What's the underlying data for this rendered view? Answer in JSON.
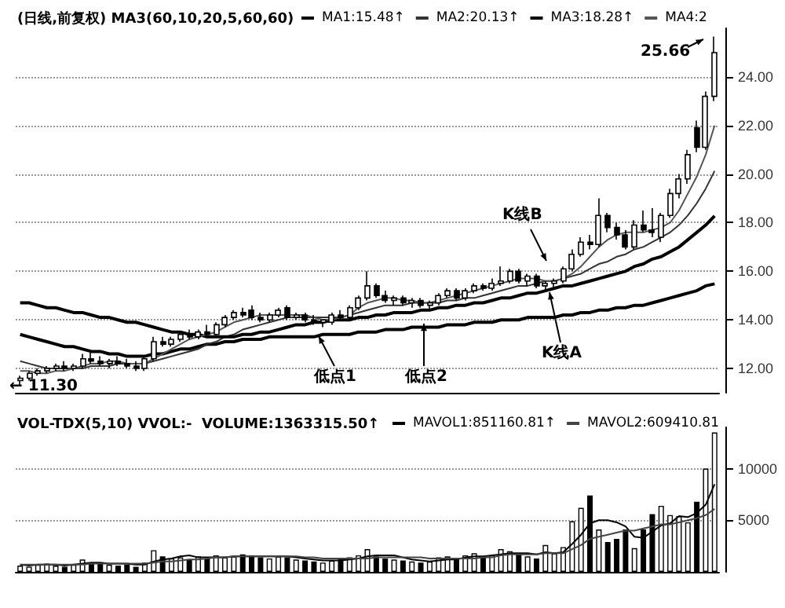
{
  "chart_data": [
    {
      "type": "candlestick",
      "title": "(日线,前复权) MA3(60,10,20,5,60,60)",
      "categories": [
        null,
        null,
        null,
        null,
        null,
        null,
        null,
        null,
        null,
        null,
        null,
        null,
        null,
        null,
        null,
        null,
        null,
        null,
        null,
        null,
        null,
        null,
        null,
        null,
        null,
        null,
        null,
        null,
        null,
        null,
        null,
        null,
        null,
        null,
        null,
        null,
        null,
        null,
        null,
        null,
        null,
        null,
        null,
        null,
        null,
        null,
        null,
        null,
        null,
        null,
        null,
        null,
        null,
        null,
        null,
        null,
        null,
        null,
        null,
        null,
        null,
        null,
        null,
        null,
        null,
        null,
        null,
        null,
        null,
        null,
        null,
        null,
        null,
        null,
        null,
        null,
        null,
        null,
        null
      ],
      "series": [
        {
          "type": "line",
          "name": "MA1:15.48↑",
          "color": "#000000",
          "values": [
            13.4,
            13.3,
            13.2,
            13.1,
            13.0,
            12.9,
            12.9,
            12.8,
            12.7,
            12.7,
            12.6,
            12.6,
            12.5,
            12.5,
            12.5,
            12.6,
            12.6,
            12.7,
            12.8,
            12.8,
            12.9,
            13.0,
            13.0,
            13.1,
            13.1,
            13.2,
            13.2,
            13.2,
            13.3,
            13.3,
            13.3,
            13.3,
            13.3,
            13.3,
            13.4,
            13.4,
            13.4,
            13.4,
            13.5,
            13.5,
            13.5,
            13.6,
            13.6,
            13.6,
            13.7,
            13.7,
            13.7,
            13.7,
            13.8,
            13.8,
            13.8,
            13.9,
            13.9,
            13.9,
            14.0,
            14.0,
            14.0,
            14.1,
            14.1,
            14.1,
            14.1,
            14.2,
            14.2,
            14.3,
            14.3,
            14.4,
            14.4,
            14.5,
            14.5,
            14.6,
            14.6,
            14.7,
            14.8,
            14.9,
            15.0,
            15.1,
            15.2,
            15.4,
            15.48
          ]
        },
        {
          "type": "line",
          "name": "MA2:20.13↑",
          "color": "#333333",
          "values": [
            12.3,
            12.2,
            12.1,
            12.0,
            12.0,
            12.0,
            12.0,
            12.0,
            12.1,
            12.1,
            12.1,
            12.2,
            12.2,
            12.2,
            12.2,
            12.3,
            12.4,
            12.5,
            12.6,
            12.7,
            12.8,
            13.0,
            13.1,
            13.3,
            13.4,
            13.6,
            13.7,
            13.8,
            13.9,
            14.0,
            14.1,
            14.1,
            14.1,
            14.1,
            14.1,
            14.1,
            14.1,
            14.2,
            14.3,
            14.4,
            14.5,
            14.6,
            14.6,
            14.6,
            14.7,
            14.7,
            14.7,
            14.7,
            14.8,
            14.8,
            14.9,
            14.9,
            15.0,
            15.1,
            15.2,
            15.3,
            15.4,
            15.4,
            15.5,
            15.6,
            15.6,
            15.7,
            15.8,
            15.9,
            16.1,
            16.3,
            16.4,
            16.6,
            16.7,
            16.9,
            17.0,
            17.2,
            17.4,
            17.6,
            17.9,
            18.3,
            18.8,
            19.4,
            20.13
          ]
        },
        {
          "type": "line",
          "name": "MA3:18.28↑",
          "color": "#000000",
          "values": [
            14.7,
            14.7,
            14.6,
            14.5,
            14.5,
            14.4,
            14.3,
            14.3,
            14.2,
            14.1,
            14.1,
            14.0,
            13.9,
            13.9,
            13.8,
            13.7,
            13.6,
            13.5,
            13.5,
            13.4,
            13.4,
            13.3,
            13.3,
            13.3,
            13.3,
            13.4,
            13.4,
            13.5,
            13.5,
            13.6,
            13.7,
            13.8,
            13.8,
            13.9,
            13.9,
            14.0,
            14.0,
            14.0,
            14.1,
            14.1,
            14.2,
            14.2,
            14.3,
            14.3,
            14.3,
            14.4,
            14.4,
            14.5,
            14.5,
            14.6,
            14.6,
            14.7,
            14.7,
            14.8,
            14.9,
            14.9,
            15.0,
            15.1,
            15.1,
            15.2,
            15.3,
            15.4,
            15.4,
            15.5,
            15.6,
            15.7,
            15.8,
            15.9,
            16.0,
            16.2,
            16.3,
            16.5,
            16.6,
            16.8,
            17.0,
            17.3,
            17.6,
            17.9,
            18.28
          ]
        },
        {
          "type": "line",
          "name": "MA4:2",
          "color": "#555555",
          "values": [
            11.9,
            11.9,
            11.8,
            11.8,
            11.9,
            11.9,
            12.0,
            12.1,
            12.2,
            12.2,
            12.3,
            12.3,
            12.2,
            12.2,
            12.2,
            12.4,
            12.6,
            12.8,
            13.0,
            13.2,
            13.3,
            13.4,
            13.5,
            13.7,
            13.9,
            14.0,
            14.1,
            14.2,
            14.2,
            14.2,
            14.2,
            14.2,
            14.2,
            14.1,
            14.0,
            14.0,
            14.1,
            14.2,
            14.5,
            14.7,
            14.8,
            14.9,
            14.9,
            14.8,
            14.8,
            14.7,
            14.7,
            14.8,
            14.9,
            15.0,
            15.1,
            15.2,
            15.3,
            15.4,
            15.5,
            15.6,
            15.7,
            15.7,
            15.7,
            15.6,
            15.6,
            15.7,
            15.9,
            16.2,
            16.6,
            17.0,
            17.3,
            17.5,
            17.6,
            17.6,
            17.6,
            17.7,
            17.8,
            18.0,
            18.5,
            19.2,
            19.9,
            20.8,
            22.0
          ]
        },
        {
          "type": "candlestick",
          "color": "#000000",
          "ohlc": [
            [
              11.5,
              11.7,
              11.3,
              11.6
            ],
            [
              11.6,
              11.9,
              11.5,
              11.8
            ],
            [
              11.8,
              12.0,
              11.7,
              11.9
            ],
            [
              11.9,
              12.1,
              11.8,
              12.0
            ],
            [
              12.0,
              12.2,
              11.9,
              12.1
            ],
            [
              12.1,
              12.3,
              11.9,
              12.0
            ],
            [
              12.0,
              12.2,
              11.9,
              12.1
            ],
            [
              12.1,
              12.6,
              12.0,
              12.4
            ],
            [
              12.4,
              12.7,
              12.2,
              12.3
            ],
            [
              12.3,
              12.5,
              12.1,
              12.2
            ],
            [
              12.2,
              12.4,
              12.0,
              12.3
            ],
            [
              12.3,
              12.5,
              12.1,
              12.2
            ],
            [
              12.2,
              12.4,
              12.0,
              12.1
            ],
            [
              12.1,
              12.3,
              11.9,
              12.0
            ],
            [
              12.0,
              12.5,
              11.9,
              12.4
            ],
            [
              12.4,
              13.3,
              12.3,
              13.1
            ],
            [
              13.1,
              13.3,
              12.9,
              13.0
            ],
            [
              13.0,
              13.3,
              12.9,
              13.2
            ],
            [
              13.2,
              13.5,
              13.1,
              13.4
            ],
            [
              13.4,
              13.6,
              13.2,
              13.3
            ],
            [
              13.3,
              13.6,
              13.2,
              13.5
            ],
            [
              13.5,
              13.8,
              13.3,
              13.4
            ],
            [
              13.4,
              13.9,
              13.3,
              13.8
            ],
            [
              13.8,
              14.2,
              13.7,
              14.1
            ],
            [
              14.1,
              14.4,
              14.0,
              14.3
            ],
            [
              14.3,
              14.5,
              14.1,
              14.2
            ],
            [
              14.4,
              14.6,
              14.0,
              14.1
            ],
            [
              14.1,
              14.3,
              13.9,
              14.0
            ],
            [
              14.0,
              14.3,
              13.9,
              14.2
            ],
            [
              14.2,
              14.5,
              14.1,
              14.4
            ],
            [
              14.5,
              14.6,
              14.0,
              14.1
            ],
            [
              14.1,
              14.3,
              14.0,
              14.2
            ],
            [
              14.2,
              14.3,
              13.9,
              14.0
            ],
            [
              14.0,
              14.2,
              13.8,
              13.9
            ],
            [
              13.9,
              14.0,
              13.7,
              14.0
            ],
            [
              13.9,
              14.3,
              13.8,
              14.2
            ],
            [
              14.2,
              14.4,
              14.0,
              14.1
            ],
            [
              14.1,
              14.6,
              14.0,
              14.5
            ],
            [
              14.5,
              15.0,
              14.4,
              14.9
            ],
            [
              14.9,
              16.0,
              14.8,
              15.4
            ],
            [
              15.4,
              15.5,
              14.9,
              15.0
            ],
            [
              15.0,
              15.2,
              14.7,
              14.8
            ],
            [
              14.8,
              15.0,
              14.6,
              14.9
            ],
            [
              14.9,
              15.0,
              14.6,
              14.7
            ],
            [
              14.7,
              14.9,
              14.5,
              14.8
            ],
            [
              14.8,
              14.9,
              14.5,
              14.6
            ],
            [
              14.6,
              14.8,
              14.4,
              14.7
            ],
            [
              14.7,
              15.1,
              14.6,
              15.0
            ],
            [
              15.0,
              15.3,
              14.9,
              15.2
            ],
            [
              15.2,
              15.3,
              14.8,
              14.9
            ],
            [
              14.9,
              15.3,
              14.8,
              15.2
            ],
            [
              15.2,
              15.5,
              15.1,
              15.4
            ],
            [
              15.4,
              15.5,
              15.2,
              15.3
            ],
            [
              15.3,
              15.7,
              15.2,
              15.5
            ],
            [
              15.5,
              16.2,
              15.4,
              15.6
            ],
            [
              15.6,
              16.1,
              15.5,
              16.0
            ],
            [
              16.0,
              16.1,
              15.5,
              15.6
            ],
            [
              15.6,
              15.9,
              15.4,
              15.8
            ],
            [
              15.8,
              15.9,
              15.3,
              15.4
            ],
            [
              15.4,
              15.6,
              15.2,
              15.5
            ],
            [
              15.5,
              15.7,
              15.3,
              15.6
            ],
            [
              15.6,
              16.2,
              15.5,
              16.1
            ],
            [
              16.1,
              16.9,
              16.0,
              16.7
            ],
            [
              16.7,
              17.4,
              16.6,
              17.2
            ],
            [
              17.2,
              17.5,
              16.9,
              17.1
            ],
            [
              17.1,
              19.0,
              17.0,
              18.3
            ],
            [
              18.3,
              18.4,
              17.6,
              17.8
            ],
            [
              17.8,
              18.0,
              17.3,
              17.5
            ],
            [
              17.5,
              17.7,
              16.9,
              17.0
            ],
            [
              17.0,
              18.1,
              16.9,
              17.9
            ],
            [
              17.9,
              18.5,
              17.6,
              17.7
            ],
            [
              17.7,
              18.6,
              17.4,
              17.6
            ],
            [
              17.4,
              18.4,
              17.2,
              18.3
            ],
            [
              18.3,
              19.4,
              18.2,
              19.2
            ],
            [
              19.2,
              20.0,
              19.0,
              19.8
            ],
            [
              19.8,
              21.0,
              19.6,
              20.8
            ],
            [
              21.9,
              22.2,
              20.9,
              21.1
            ],
            [
              21.1,
              23.4,
              21.0,
              23.2
            ],
            [
              23.2,
              25.66,
              23.0,
              25.0
            ]
          ]
        }
      ],
      "ylim": [
        11,
        26
      ],
      "yticks": [
        {
          "value": 12,
          "label": "12.00"
        },
        {
          "value": 14,
          "label": "14.00"
        },
        {
          "value": 16,
          "label": "16.00"
        },
        {
          "value": 18,
          "label": "18.00"
        },
        {
          "value": 20,
          "label": "20.00"
        },
        {
          "value": 22,
          "label": "22.00"
        },
        {
          "value": 24,
          "label": "24.00"
        }
      ],
      "annotations": [
        "25.66",
        "← 11.30",
        "低点1",
        "低点2",
        "K线A",
        "K线B"
      ],
      "grid": "y",
      "legend": "top",
      "tick_labels": "y"
    },
    {
      "type": "bar",
      "title": "VOL-TDX(5,10) VVOL:-  VOLUME:1363315.50↑",
      "categories": [
        null,
        null,
        null,
        null,
        null,
        null,
        null,
        null,
        null,
        null,
        null,
        null,
        null,
        null,
        null,
        null,
        null,
        null,
        null,
        null,
        null,
        null,
        null,
        null,
        null,
        null,
        null,
        null,
        null,
        null,
        null,
        null,
        null,
        null,
        null,
        null,
        null,
        null,
        null,
        null,
        null,
        null,
        null,
        null,
        null,
        null,
        null,
        null,
        null,
        null,
        null,
        null,
        null,
        null,
        null,
        null,
        null,
        null,
        null,
        null,
        null,
        null,
        null,
        null,
        null,
        null,
        null,
        null,
        null,
        null,
        null,
        null,
        null,
        null,
        null,
        null,
        null,
        null,
        null
      ],
      "series": [
        {
          "type": "bar",
          "values": [
            600,
            500,
            700,
            800,
            600,
            500,
            700,
            1200,
            900,
            800,
            700,
            600,
            700,
            500,
            900,
            2100,
            1500,
            1300,
            1400,
            1200,
            1500,
            1300,
            1600,
            1400,
            1500,
            1700,
            1600,
            1400,
            1300,
            1500,
            1400,
            1200,
            1100,
            1000,
            900,
            1100,
            1300,
            1400,
            1600,
            2200,
            1500,
            1300,
            1200,
            1100,
            1000,
            900,
            1000,
            1400,
            1500,
            1300,
            1600,
            1800,
            1500,
            1600,
            2200,
            2000,
            1700,
            1500,
            1300,
            2600,
            1800,
            2400,
            4900,
            6200,
            7400,
            4100,
            2900,
            3200,
            4100,
            2300,
            4100,
            5600,
            6400,
            5500,
            5400,
            4800,
            6800,
            10000,
            13500
          ],
          "colors": [
            "#ffffff",
            "#ffffff",
            "#ffffff",
            "#ffffff",
            "#ffffff",
            "#000000",
            "#ffffff",
            "#ffffff",
            "#000000",
            "#000000",
            "#ffffff",
            "#000000",
            "#000000",
            "#000000",
            "#ffffff",
            "#ffffff",
            "#000000",
            "#ffffff",
            "#ffffff",
            "#000000",
            "#ffffff",
            "#000000",
            "#ffffff",
            "#ffffff",
            "#ffffff",
            "#000000",
            "#000000",
            "#000000",
            "#ffffff",
            "#ffffff",
            "#000000",
            "#ffffff",
            "#000000",
            "#000000",
            "#ffffff",
            "#ffffff",
            "#000000",
            "#ffffff",
            "#ffffff",
            "#ffffff",
            "#000000",
            "#000000",
            "#ffffff",
            "#000000",
            "#ffffff",
            "#000000",
            "#ffffff",
            "#ffffff",
            "#ffffff",
            "#000000",
            "#ffffff",
            "#ffffff",
            "#000000",
            "#ffffff",
            "#ffffff",
            "#ffffff",
            "#000000",
            "#ffffff",
            "#000000",
            "#ffffff",
            "#ffffff",
            "#ffffff",
            "#ffffff",
            "#ffffff",
            "#000000",
            "#ffffff",
            "#000000",
            "#000000",
            "#000000",
            "#ffffff",
            "#000000",
            "#000000",
            "#ffffff",
            "#ffffff",
            "#ffffff",
            "#ffffff",
            "#000000",
            "#ffffff",
            "#ffffff"
          ]
        },
        {
          "type": "line",
          "name": "MAVOL1:851160.81↑",
          "color": "#000000",
          "values": [
            700,
            600,
            700,
            700,
            700,
            600,
            700,
            800,
            900,
            900,
            800,
            800,
            800,
            700,
            700,
            1000,
            1200,
            1300,
            1500,
            1600,
            1400,
            1400,
            1400,
            1400,
            1500,
            1500,
            1500,
            1500,
            1500,
            1500,
            1500,
            1400,
            1300,
            1200,
            1100,
            1100,
            1100,
            1200,
            1300,
            1500,
            1600,
            1600,
            1600,
            1400,
            1200,
            1100,
            1000,
            1100,
            1200,
            1200,
            1400,
            1500,
            1500,
            1600,
            1700,
            1800,
            1800,
            1800,
            1700,
            1900,
            1800,
            1900,
            2700,
            3600,
            4700,
            5000,
            5000,
            4800,
            4400,
            3400,
            3300,
            3900,
            4500,
            4700,
            5400,
            5300,
            5700,
            6500,
            8500
          ]
        },
        {
          "type": "line",
          "name": "MAVOL2:609410.81",
          "color": "#444444",
          "values": [
            700,
            700,
            700,
            700,
            700,
            700,
            700,
            700,
            800,
            800,
            800,
            800,
            800,
            800,
            800,
            900,
            1000,
            1000,
            1100,
            1200,
            1200,
            1300,
            1400,
            1400,
            1500,
            1500,
            1500,
            1500,
            1500,
            1500,
            1500,
            1500,
            1400,
            1400,
            1300,
            1300,
            1300,
            1300,
            1300,
            1300,
            1400,
            1400,
            1400,
            1400,
            1400,
            1400,
            1300,
            1300,
            1300,
            1300,
            1300,
            1300,
            1400,
            1400,
            1600,
            1700,
            1700,
            1700,
            1700,
            1800,
            1800,
            1800,
            2200,
            2600,
            3200,
            3400,
            3600,
            3800,
            4000,
            4000,
            4200,
            4400,
            4600,
            4600,
            4800,
            5000,
            5200,
            5500,
            6100
          ]
        }
      ],
      "ylim": [
        0,
        14000
      ],
      "yticks": [
        5000,
        10000
      ],
      "grid": "y",
      "legend": "top",
      "tick_labels": "y"
    }
  ]
}
